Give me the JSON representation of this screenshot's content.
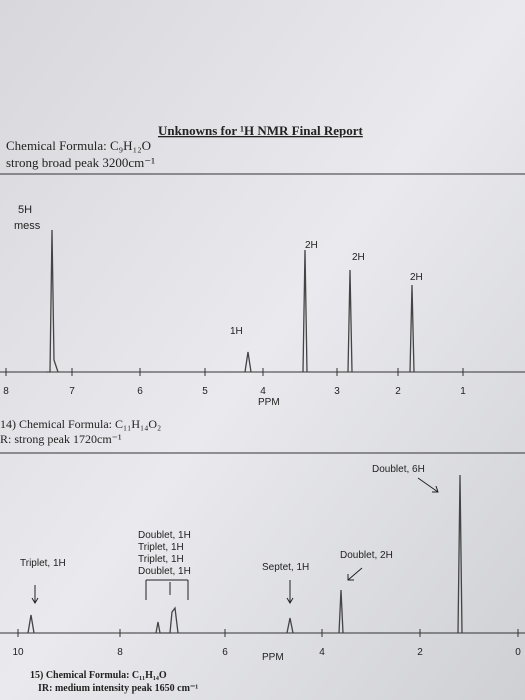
{
  "header": {
    "title": "Unknowns for ¹H NMR Final Report"
  },
  "problem_13": {
    "formula": "Chemical Formula: C₉H₁₂O",
    "ir": "strong broad peak 3200cm⁻¹"
  },
  "spectrum_1": {
    "annotations": [
      "5H",
      "mess",
      "1H",
      "2H",
      "2H",
      "2H"
    ],
    "ticks": [
      "8",
      "7",
      "6",
      "5",
      "4",
      "3",
      "2",
      "1"
    ],
    "axis_label": "PPM"
  },
  "problem_14": {
    "formula": "14) Chemical Formula: C₁₁H₁₄O₂",
    "ir": "R: strong peak 1720cm⁻¹"
  },
  "spectrum_2": {
    "annotations": [
      "Doublet, 6H",
      "Doublet, 1H",
      "Triplet, 1H",
      "Triplet, 1H",
      "Doublet, 1H",
      "Triplet, 1H",
      "Doublet, 2H",
      "Septet, 1H"
    ],
    "ticks": [
      "10",
      "8",
      "6",
      "4",
      "2",
      "0"
    ],
    "axis_label": "PPM"
  },
  "problem_15": {
    "formula": "15) Chemical Formula: C₁₁H₁₄O",
    "ir": "IR: medium intensity peak 1650 cm⁻¹"
  }
}
